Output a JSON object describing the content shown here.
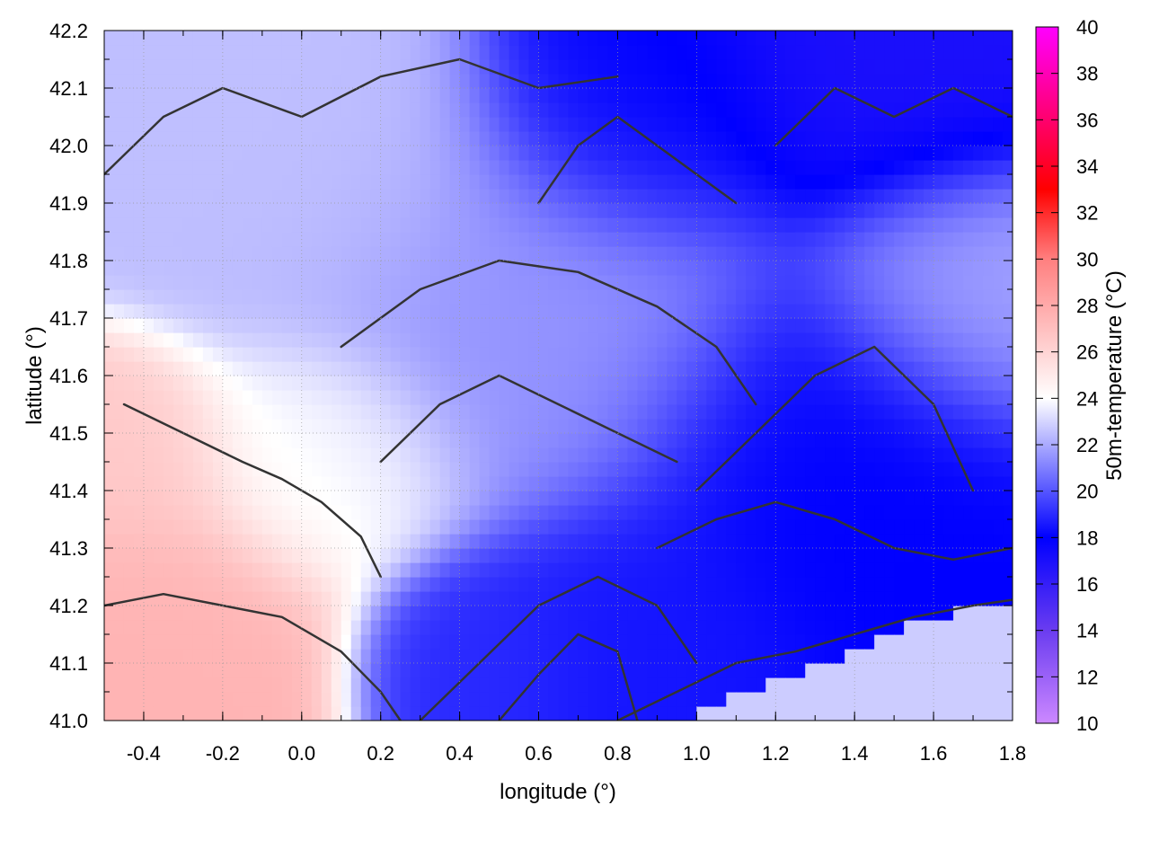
{
  "chart_data": {
    "type": "heatmap",
    "title": "",
    "xlabel": "longitude (°)",
    "ylabel": "latitude (°)",
    "colorbar_label": "50m-temperature (°C)",
    "xlim": [
      -0.5,
      1.8
    ],
    "ylim": [
      41.0,
      42.2
    ],
    "clim": [
      10,
      40
    ],
    "x_ticks": [
      -0.4,
      -0.2,
      0.0,
      0.2,
      0.4,
      0.6,
      0.8,
      1.0,
      1.2,
      1.4,
      1.6,
      1.8
    ],
    "x_tick_labels": [
      "-0.4",
      "-0.2",
      "0.0",
      "0.2",
      "0.4",
      "0.6",
      "0.8",
      "1.0",
      "1.2",
      "1.4",
      "1.6",
      "1.8"
    ],
    "y_ticks": [
      41.0,
      41.1,
      41.2,
      41.3,
      41.4,
      41.5,
      41.6,
      41.7,
      41.8,
      41.9,
      42.0,
      42.1,
      42.2
    ],
    "y_tick_labels": [
      "41.0",
      "41.1",
      "41.2",
      "41.3",
      "41.4",
      "41.5",
      "41.6",
      "41.7",
      "41.8",
      "41.9",
      "42.0",
      "42.1",
      "42.2"
    ],
    "colorbar_ticks": [
      10,
      12,
      14,
      16,
      18,
      20,
      22,
      24,
      26,
      28,
      30,
      32,
      34,
      36,
      38,
      40
    ],
    "colorbar_tick_labels": [
      "10",
      "12",
      "14",
      "16",
      "18",
      "20",
      "22",
      "24",
      "26",
      "28",
      "30",
      "32",
      "34",
      "36",
      "38",
      "40"
    ],
    "colormap": [
      {
        "value": 10,
        "color": "#cc88ff"
      },
      {
        "value": 14,
        "color": "#6a3cf0"
      },
      {
        "value": 18,
        "color": "#0000ff"
      },
      {
        "value": 24,
        "color": "#ffffff"
      },
      {
        "value": 30,
        "color": "#ff7f7f"
      },
      {
        "value": 33,
        "color": "#ff0000"
      },
      {
        "value": 40,
        "color": "#ff00ff"
      }
    ],
    "grid": true,
    "sea_fill": {
      "value": 22.8,
      "boundary_lon": [
        0.75,
        0.95,
        1.1,
        1.25,
        1.4,
        1.5,
        1.6,
        1.7,
        1.8
      ],
      "boundary_lat": [
        41.0,
        41.0,
        41.05,
        41.08,
        41.12,
        41.16,
        41.18,
        41.2,
        41.21
      ]
    },
    "temperature_regions": [
      {
        "name": "west-warm-lowland",
        "lon": -0.35,
        "lat": 41.15,
        "radius_deg": 0.22,
        "value": 27.5
      },
      {
        "name": "west-coast-strip",
        "lon": -0.45,
        "lat": 41.45,
        "radius_deg": 0.15,
        "value": 26.5
      },
      {
        "name": "central-warm-valley",
        "lon": 0.05,
        "lat": 41.45,
        "radius_deg": 0.18,
        "value": 24.0
      },
      {
        "name": "north-west-hills",
        "lon": 0.0,
        "lat": 41.95,
        "radius_deg": 0.25,
        "value": 22.5
      },
      {
        "name": "central-hills",
        "lon": 0.6,
        "lat": 41.7,
        "radius_deg": 0.3,
        "value": 21.5
      },
      {
        "name": "north-central-mountains",
        "lon": 0.85,
        "lat": 42.05,
        "radius_deg": 0.2,
        "value": 18.0
      },
      {
        "name": "north-east-mountains",
        "lon": 1.5,
        "lat": 42.15,
        "radius_deg": 0.25,
        "value": 17.0
      },
      {
        "name": "east-cool-plateau",
        "lon": 1.35,
        "lat": 41.45,
        "radius_deg": 0.28,
        "value": 18.0
      },
      {
        "name": "south-central-range",
        "lon": 0.85,
        "lat": 41.15,
        "radius_deg": 0.2,
        "value": 18.5
      },
      {
        "name": "south-west-range",
        "lon": 0.45,
        "lat": 41.1,
        "radius_deg": 0.15,
        "value": 19.0
      },
      {
        "name": "east-coast-plain",
        "lon": 1.7,
        "lat": 41.75,
        "radius_deg": 0.2,
        "value": 22.0
      }
    ],
    "contour_lines": [
      {
        "name": "contour-west-1",
        "lon": [
          -0.45,
          -0.3,
          -0.15,
          -0.05,
          0.05,
          0.15,
          0.2
        ],
        "lat": [
          41.55,
          41.5,
          41.45,
          41.42,
          41.38,
          41.32,
          41.25
        ]
      },
      {
        "name": "contour-west-2",
        "lon": [
          -0.5,
          -0.35,
          -0.2,
          -0.05,
          0.1,
          0.2,
          0.25
        ],
        "lat": [
          41.2,
          41.22,
          41.2,
          41.18,
          41.12,
          41.05,
          41.0
        ]
      },
      {
        "name": "contour-north-1",
        "lon": [
          -0.5,
          -0.35,
          -0.2,
          0.0,
          0.2,
          0.4,
          0.6,
          0.8
        ],
        "lat": [
          41.95,
          42.05,
          42.1,
          42.05,
          42.12,
          42.15,
          42.1,
          42.12
        ]
      },
      {
        "name": "contour-central-1",
        "lon": [
          0.1,
          0.3,
          0.5,
          0.7,
          0.9,
          1.05,
          1.15
        ],
        "lat": [
          41.65,
          41.75,
          41.8,
          41.78,
          41.72,
          41.65,
          41.55
        ]
      },
      {
        "name": "contour-central-2",
        "lon": [
          0.2,
          0.35,
          0.5,
          0.65,
          0.8,
          0.95
        ],
        "lat": [
          41.45,
          41.55,
          41.6,
          41.55,
          41.5,
          41.45
        ]
      },
      {
        "name": "contour-east-1",
        "lon": [
          1.0,
          1.15,
          1.3,
          1.45,
          1.6,
          1.7
        ],
        "lat": [
          41.4,
          41.5,
          41.6,
          41.65,
          41.55,
          41.4
        ]
      },
      {
        "name": "contour-east-2",
        "lon": [
          0.9,
          1.05,
          1.2,
          1.35,
          1.5,
          1.65,
          1.8
        ],
        "lat": [
          41.3,
          41.35,
          41.38,
          41.35,
          41.3,
          41.28,
          41.3
        ]
      },
      {
        "name": "contour-south-1",
        "lon": [
          0.3,
          0.45,
          0.6,
          0.75,
          0.9,
          1.0
        ],
        "lat": [
          41.0,
          41.1,
          41.2,
          41.25,
          41.2,
          41.1
        ]
      },
      {
        "name": "contour-south-2",
        "lon": [
          0.5,
          0.6,
          0.7,
          0.8,
          0.85
        ],
        "lat": [
          41.0,
          41.08,
          41.15,
          41.12,
          41.0
        ]
      },
      {
        "name": "contour-north-east-1",
        "lon": [
          1.2,
          1.35,
          1.5,
          1.65,
          1.8
        ],
        "lat": [
          42.0,
          42.1,
          42.05,
          42.1,
          42.05
        ]
      },
      {
        "name": "contour-north-central-1",
        "lon": [
          0.6,
          0.7,
          0.8,
          0.9,
          1.0,
          1.1
        ],
        "lat": [
          41.9,
          42.0,
          42.05,
          42.0,
          41.95,
          41.9
        ]
      },
      {
        "name": "contour-coast",
        "lon": [
          0.8,
          0.95,
          1.1,
          1.25,
          1.4,
          1.55,
          1.7,
          1.8
        ],
        "lat": [
          41.0,
          41.05,
          41.1,
          41.12,
          41.15,
          41.18,
          41.2,
          41.21
        ]
      }
    ]
  }
}
